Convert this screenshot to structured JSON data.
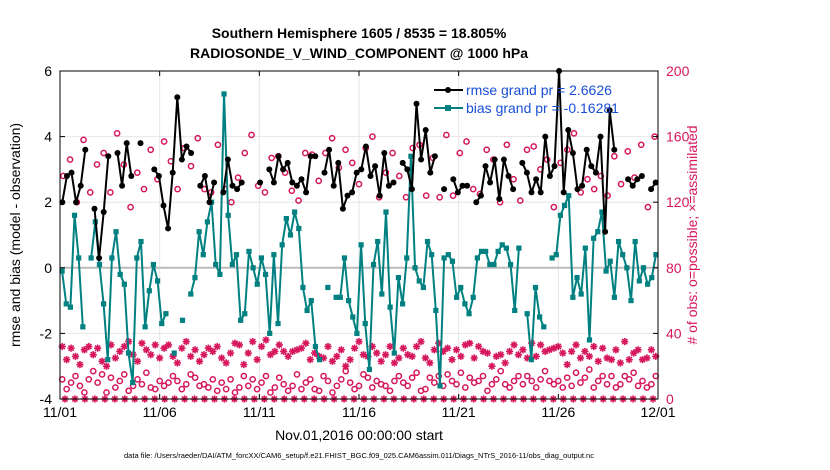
{
  "chart_data": {
    "type": "line",
    "title": "Southern Hemisphere 1605 / 8535 = 18.805%",
    "subtitle": "RADIOSONDE_V_WIND_COMPONENT @ 1000 hPa",
    "xlabel": "Nov.01,2016 00:00:00 start",
    "ylabel_left": "rmse and bias (model - observation)",
    "ylabel_right": "# of obs: o=possible; ×=assimilated",
    "footer": "data file: /Users/raeder/DAI/ATM_forcXX/CAM6_setup/f.e21.FHIST_BGC.f09_025.CAM6assim.011/Diags_NTrS_2016-11/obs_diag_output.nc",
    "xlim": [
      0,
      30
    ],
    "ylim_left": [
      -4,
      6
    ],
    "ylim_right": [
      0,
      200
    ],
    "x_ticks": [
      {
        "x": 0,
        "label": "11/01"
      },
      {
        "x": 5,
        "label": "11/06"
      },
      {
        "x": 10,
        "label": "11/11"
      },
      {
        "x": 15,
        "label": "11/16"
      },
      {
        "x": 20,
        "label": "11/21"
      },
      {
        "x": 25,
        "label": "11/26"
      },
      {
        "x": 30,
        "label": "12/01"
      }
    ],
    "y_ticks_left": [
      "-4",
      "-2",
      "0",
      "2",
      "4",
      "6"
    ],
    "y_ticks_right": [
      "0",
      "40",
      "80",
      "120",
      "160",
      "200"
    ],
    "legend": [
      {
        "name": "rmse grand pr = 2.6626",
        "color": "#000000"
      },
      {
        "name": "bias grand pr = -0.16281",
        "color": "#008080"
      }
    ],
    "colors": {
      "rmse": "#000000",
      "bias": "#008080",
      "obs": "#d6175d",
      "legend_text": "#1a4fd6",
      "zero_line": "#bbbbbb"
    },
    "series": [
      {
        "name": "rmse",
        "values": [
          2.0,
          2.8,
          2.9,
          2.0,
          2.5,
          3.6,
          null,
          1.8,
          0.3,
          1.7,
          3.4,
          null,
          3.5,
          2.5,
          3.8,
          2.8,
          null,
          3.8,
          null,
          null,
          3.0,
          2.8,
          1.9,
          1.2,
          2.9,
          5.2,
          3.3,
          3.7,
          3.5,
          null,
          2.5,
          2.8,
          2.0,
          2.6,
          null,
          2.3,
          3.3,
          2.5,
          2.4,
          2.6,
          null,
          null,
          null,
          2.6,
          null,
          3.0,
          2.6,
          3.4,
          3.0,
          3.2,
          2.6,
          2.5,
          2.7,
          2.3,
          3.4,
          3.4,
          null,
          2.9,
          3.6,
          2.5,
          3.2,
          1.8,
          2.2,
          2.3,
          2.9,
          3.0,
          3.7,
          2.8,
          3.1,
          2.2,
          3.5,
          2.5,
          2.6,
          null,
          3.2,
          3.0,
          2.4,
          5.0,
          3.3,
          4.2,
          2.9,
          3.4,
          null,
          2.4,
          null,
          2.7,
          2.3,
          2.5,
          2.5,
          null,
          2.0,
          2.2,
          3.1,
          2.6,
          3.3,
          2.1,
          3.3,
          2.8,
          2.4,
          null,
          3.2,
          2.9,
          2.3,
          2.7,
          2.3,
          4.0,
          2.8,
          3.1,
          6.0,
          2.3,
          4.2,
          3.5,
          2.4,
          2.5,
          3.6,
          3.1,
          2.9,
          4.0,
          1.1,
          4.8,
          3.6,
          null,
          null,
          2.7,
          2.5,
          2.7,
          2.8,
          null,
          2.4,
          2.6
        ]
      },
      {
        "name": "bias",
        "values": [
          -0.1,
          -1.1,
          -1.2,
          1.6,
          0.3,
          -1.8,
          null,
          0.3,
          1.4,
          0.1,
          -1.1,
          -2.8,
          0.3,
          1.1,
          -0.2,
          -0.5,
          -2.6,
          -3.5,
          0.3,
          0.8,
          -1.8,
          -0.7,
          0.1,
          -0.4,
          -1.7,
          -1.4,
          null,
          -2.6,
          null,
          -1.6,
          null,
          -0.8,
          -0.3,
          1.1,
          0.4,
          1.4,
          2.0,
          0.1,
          -0.2,
          5.3,
          1.6,
          0.1,
          0.4,
          -1.6,
          -1.4,
          0.5,
          0.0,
          -0.5,
          0.3,
          -0.2,
          -2.0,
          0.4,
          -1.7,
          0.7,
          1.5,
          1.0,
          1.7,
          1.2,
          -0.6,
          -1.3,
          -1.0,
          -2.4,
          -2.8,
          null,
          -0.6,
          null,
          -0.9,
          -0.9,
          0.3,
          -1.0,
          -1.5,
          -2.0,
          0.7,
          -1.7,
          -3.1,
          0.1,
          0.8,
          -0.8,
          1.7,
          -1.2,
          -2.6,
          -0.3,
          -1.1,
          0.3,
          3.4,
          0.0,
          -0.4,
          -0.6,
          0.8,
          0.4,
          -1.3,
          -3.6,
          0.3,
          0.4,
          0.2,
          -0.9,
          -0.6,
          -1.1,
          -1.4,
          -0.9,
          0.3,
          0.5,
          0.5,
          0.1,
          0.1,
          0.5,
          0.7,
          0.6,
          0.1,
          -1.3,
          0.6,
          null,
          -1.4,
          -2.8,
          -0.6,
          -1.5,
          -1.8,
          null,
          0.3,
          0.4,
          1.6,
          1.9,
          2.2,
          -0.9,
          -0.3,
          -0.8,
          0.6,
          -2.2,
          0.9,
          1.1,
          1.7,
          -0.1,
          0.2,
          -0.9,
          0.8,
          0.4,
          0.0,
          -1.0,
          0.8,
          -0.4,
          0.0,
          -0.5,
          -0.3,
          0.4
        ]
      },
      {
        "name": "obs_possible_o",
        "values": [
          12,
          6,
          10,
          14,
          8,
          4,
          12,
          17,
          10,
          15,
          4,
          13,
          7,
          11,
          15,
          5,
          8,
          12,
          9,
          16,
          7,
          6,
          11,
          8,
          10,
          14,
          11,
          6,
          9,
          15,
          13,
          8,
          9,
          7,
          12,
          5,
          10,
          6,
          12,
          4,
          7,
          14,
          8,
          12,
          6,
          10,
          14,
          4,
          7,
          13,
          9,
          5,
          8,
          15,
          6,
          10,
          12,
          6,
          5,
          14,
          11,
          4,
          8,
          12,
          17,
          10,
          6,
          8,
          15,
          13,
          7,
          11,
          9,
          8,
          5,
          11,
          14,
          10,
          8,
          13,
          16,
          5,
          6,
          13,
          10,
          14,
          8,
          15,
          11,
          9,
          16,
          7,
          13,
          10,
          11,
          14,
          5,
          9,
          12,
          17,
          9,
          7,
          11,
          14,
          9,
          14,
          11,
          7,
          12,
          17,
          11,
          9,
          11,
          7,
          13,
          8,
          16,
          10,
          13,
          18,
          7,
          11,
          14,
          9,
          14,
          7,
          9,
          14,
          12,
          16,
          8,
          11,
          7,
          9,
          14
        ]
      },
      {
        "name": "obs_assimilated_x",
        "values": [
          32,
          24,
          31,
          26,
          21,
          30,
          32,
          27,
          31,
          23,
          20,
          33,
          25,
          29,
          32,
          35,
          27,
          23,
          34,
          30,
          27,
          33,
          25,
          31,
          33,
          26,
          22,
          31,
          35,
          26,
          30,
          23,
          27,
          31,
          29,
          32,
          25,
          22,
          28,
          34,
          33,
          21,
          28,
          35,
          24,
          32,
          36,
          27,
          29,
          33,
          29,
          26,
          29,
          30,
          31,
          34,
          24,
          28,
          26,
          25,
          32,
          23,
          26,
          30,
          20,
          24,
          31,
          35,
          27,
          26,
          32,
          28,
          23,
          27,
          32,
          22,
          25,
          31,
          27,
          26,
          32,
          35,
          25,
          22,
          30,
          34,
          29,
          31,
          24,
          30,
          26,
          33,
          34,
          25,
          32,
          29,
          28,
          20,
          26,
          27,
          22,
          29,
          33,
          27,
          30,
          25,
          34,
          26,
          33,
          29,
          30,
          31,
          32,
          28,
          21,
          29,
          33,
          25,
          29,
          26,
          32,
          23,
          31,
          25,
          24,
          30,
          22,
          35,
          24,
          28,
          30,
          24,
          25,
          30,
          26
        ]
      },
      {
        "name": "obs_possible_upper_o",
        "values": [
          136,
          146,
          120,
          158,
          126,
          143,
          150,
          126,
          162,
          143,
          117,
          138,
          128,
          152,
          134,
          157,
          145,
          128,
          153,
          142,
          159,
          128,
          126,
          155,
          128,
          120,
          135,
          150,
          161,
          130,
          126,
          147,
          148,
          138,
          127,
          121,
          150,
          149,
          133,
          150,
          159,
          141,
          152,
          144,
          131,
          153,
          160,
          123,
          138,
          150,
          136,
          123,
          153,
          155,
          124,
          147,
          123,
          161,
          124,
          150,
          157,
          128,
          125,
          152,
          146,
          120,
          155,
          134,
          121,
          152,
          154,
          140,
          146,
          117,
          144,
          152,
          162,
          126,
          134,
          128,
          136,
          124,
          148,
          131,
          151,
          135,
          155,
          117,
          160
        ]
      },
      {
        "name": "obs_assimilated_zero_x",
        "values": [
          0,
          0,
          0,
          0,
          0,
          0,
          0,
          0,
          0,
          0,
          0,
          0,
          0,
          0,
          0,
          0,
          0,
          0,
          0,
          0,
          0,
          0,
          0,
          0,
          0,
          0,
          0,
          0,
          0,
          0,
          0,
          0,
          0,
          0,
          0,
          0,
          0,
          0,
          0,
          0,
          0,
          0,
          0,
          0,
          0,
          0,
          0,
          0,
          0,
          0,
          0,
          0,
          0,
          0,
          0,
          0,
          0,
          0,
          0,
          0
        ]
      }
    ]
  }
}
